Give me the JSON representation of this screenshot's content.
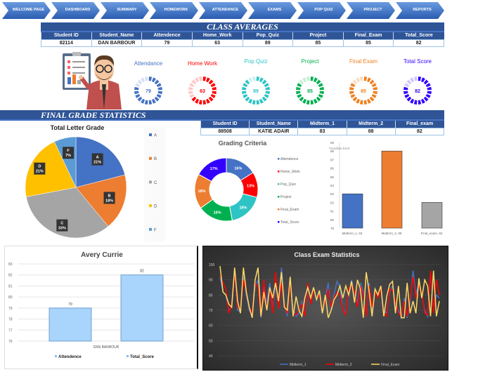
{
  "nav": [
    "WELCOME PAGE",
    "DASHBOARD",
    "SUMMARY",
    "HOMEWORK",
    "ATTENDANCE",
    "EXAMS",
    "POP QUIZ",
    "PROJECT",
    "REPORTS"
  ],
  "class_averages": {
    "title": "CLASS AVERAGES",
    "headers": [
      "Student ID",
      "Student_Name",
      "Attendence",
      "Home_Work",
      "Pop_Quiz",
      "Project",
      "Final_Exam",
      "Total_Score"
    ],
    "row": [
      "82114",
      "DAN BARBOUR",
      "79",
      "63",
      "89",
      "85",
      "85",
      "82"
    ]
  },
  "gauges": [
    {
      "label": "Attendance",
      "value": 79,
      "color": "#4472c4",
      "light": "#d6e0f3"
    },
    {
      "label": "Home Work",
      "value": 63,
      "color": "#ff0000",
      "light": "#ffc7c7"
    },
    {
      "label": "Pop Quiz",
      "value": 89,
      "color": "#2ec4c4",
      "light": "#c8f0f0"
    },
    {
      "label": "Project",
      "value": 85,
      "color": "#00b050",
      "light": "#c6efd5"
    },
    {
      "label": "Final Exam",
      "value": 85,
      "color": "#f08020",
      "light": "#fbdcc0"
    },
    {
      "label": "Total Score",
      "value": 82,
      "color": "#3300ff",
      "light": "#d0c6ff"
    }
  ],
  "final_stats": {
    "title": "FINAL GRADE STATISTICS",
    "headers": [
      "Student ID",
      "Student_Name",
      "Midterm_1",
      "Midterm_2",
      "Final_exam"
    ],
    "row": [
      "88508",
      "KATIE ADAIR",
      "83",
      "88",
      "82"
    ]
  },
  "chart_data": [
    {
      "type": "pie",
      "title": "Total Letter Grade",
      "categories": [
        "A",
        "B",
        "C",
        "D",
        "F"
      ],
      "values": [
        21,
        18,
        33,
        21,
        7
      ],
      "colors": [
        "#4472c4",
        "#ed7d31",
        "#a5a5a5",
        "#ffc000",
        "#5b9bd5"
      ],
      "legend": "right"
    },
    {
      "type": "pie",
      "title": "Grading Criteria",
      "categories": [
        "Attendence",
        "Home_Work",
        "Pop_Quiz",
        "Project",
        "Final_Exam",
        "Total_Score"
      ],
      "values": [
        16,
        13,
        18,
        18,
        18,
        17
      ],
      "colors": [
        "#4472c4",
        "#ff0000",
        "#2ec4c4",
        "#00b050",
        "#ed7d31",
        "#3300ff"
      ],
      "legend": "right"
    },
    {
      "type": "bar",
      "annotation": "Trendline Error",
      "categories": [
        "Midterm_1, 83",
        "Midterm_2, 88",
        "Final_exam, 82"
      ],
      "values": [
        83,
        88,
        82
      ],
      "colors": [
        "#4472c4",
        "#ed7d31",
        "#a5a5a5"
      ],
      "ylim": [
        79,
        89
      ],
      "yticks": [
        79,
        80,
        81,
        82,
        83,
        84,
        85,
        86,
        87,
        88,
        89
      ]
    },
    {
      "type": "bar",
      "title": "Avery Currie",
      "categories": [
        "DAN BARBOUR"
      ],
      "series": [
        {
          "name": "Attendence",
          "values": [
            79
          ]
        },
        {
          "name": "Total_Score",
          "values": [
            82
          ]
        }
      ],
      "data_labels": [
        "79",
        "82"
      ],
      "ylim": [
        76,
        83
      ],
      "yticks": [
        76,
        77,
        78,
        79,
        80,
        81,
        82,
        83
      ],
      "legend": "bottom",
      "grid": true
    },
    {
      "type": "line",
      "title": "Class Exam Statistics",
      "ylim": [
        40,
        100
      ],
      "yticks": [
        40,
        50,
        60,
        70,
        80,
        90,
        100
      ],
      "legend": "bottom",
      "grid": true,
      "series": [
        {
          "name": "Midterm_1",
          "color": "#4472c4",
          "values": [
            92,
            82,
            80,
            70,
            72,
            96,
            70,
            69,
            92,
            80,
            70,
            67,
            85,
            90,
            65,
            85,
            75,
            88,
            70,
            87,
            73,
            98,
            75,
            66,
            90,
            70,
            66,
            68,
            76,
            66,
            85,
            78,
            84,
            77,
            82,
            68,
            78,
            88,
            70,
            80,
            89,
            85,
            70,
            68,
            82,
            90,
            80,
            75,
            88,
            82,
            66,
            88,
            70,
            84,
            80,
            85,
            70,
            68,
            82,
            86,
            75,
            70,
            65,
            78,
            65,
            75,
            96,
            80,
            88,
            80,
            70,
            66,
            95,
            70,
            80,
            78
          ]
        },
        {
          "name": "Midterm_2",
          "color": "#ff0000",
          "values": [
            93,
            88,
            84,
            68,
            74,
            95,
            72,
            70,
            90,
            82,
            72,
            68,
            88,
            85,
            66,
            90,
            70,
            85,
            68,
            95,
            71,
            88,
            74,
            68,
            88,
            68,
            67,
            70,
            74,
            66,
            88,
            74,
            84,
            78,
            80,
            70,
            76,
            84,
            72,
            78,
            82,
            80,
            70,
            67,
            84,
            88,
            82,
            72,
            86,
            80,
            66,
            86,
            72,
            82,
            78,
            84,
            68,
            66,
            84,
            83,
            76,
            68,
            66,
            76,
            66,
            78,
            92,
            78,
            86,
            82,
            68,
            67,
            96,
            68,
            90,
            80
          ]
        },
        {
          "name": "Final_Exam",
          "color": "#ffd966",
          "values": [
            99,
            82,
            80,
            74,
            72,
            98,
            76,
            68,
            98,
            82,
            72,
            65,
            90,
            98,
            66,
            82,
            70,
            85,
            78,
            88,
            76,
            95,
            72,
            70,
            92,
            66,
            79,
            70,
            66,
            78,
            85,
            78,
            85,
            77,
            83,
            68,
            80,
            65,
            70,
            77,
            80,
            86,
            78,
            86,
            80,
            89,
            75,
            90,
            84,
            65,
            95,
            82,
            66,
            84,
            80,
            86,
            66,
            79,
            87,
            89,
            68,
            86,
            65,
            65,
            88,
            68,
            76,
            68,
            91,
            78,
            90,
            86,
            66,
            96,
            66,
            76
          ]
        }
      ]
    }
  ]
}
